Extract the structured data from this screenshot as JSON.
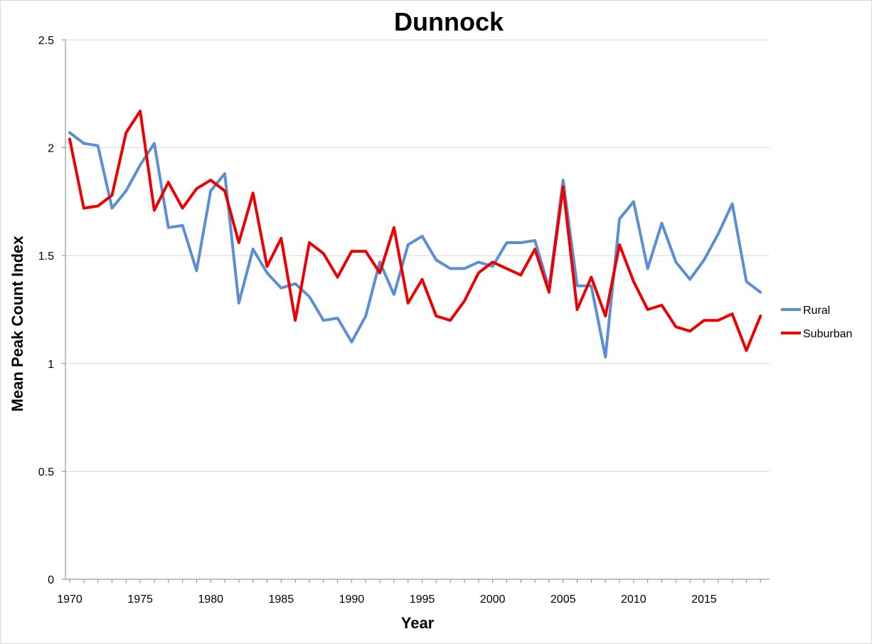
{
  "chart_data": {
    "type": "line",
    "title": "Dunnock",
    "xlabel": "Year",
    "ylabel": "Mean Peak Count Index",
    "ylim": [
      0,
      2.5
    ],
    "y_ticks": [
      "0",
      "0.5",
      "1",
      "1.5",
      "2",
      "2.5"
    ],
    "x_tick_labels": [
      "1970",
      "1975",
      "1980",
      "1985",
      "1990",
      "1995",
      "2000",
      "2005",
      "2010",
      "2015"
    ],
    "grid": "horizontal",
    "legend_position": "right",
    "x": [
      1970,
      1971,
      1972,
      1973,
      1974,
      1975,
      1976,
      1977,
      1978,
      1979,
      1980,
      1981,
      1982,
      1983,
      1984,
      1985,
      1986,
      1987,
      1988,
      1989,
      1990,
      1991,
      1992,
      1993,
      1994,
      1995,
      1996,
      1997,
      1998,
      1999,
      2000,
      2001,
      2002,
      2003,
      2004,
      2005,
      2006,
      2007,
      2008,
      2009,
      2010,
      2011,
      2012,
      2013,
      2014,
      2015,
      2016,
      2017,
      2018,
      2019
    ],
    "series": [
      {
        "name": "Rural",
        "color": "#5b8fd4",
        "values": [
          2.07,
          2.02,
          2.01,
          1.72,
          1.8,
          1.92,
          2.02,
          1.63,
          1.64,
          1.43,
          1.8,
          1.88,
          1.28,
          1.53,
          1.42,
          1.35,
          1.37,
          1.31,
          1.2,
          1.21,
          1.1,
          1.22,
          1.47,
          1.32,
          1.55,
          1.59,
          1.48,
          1.44,
          1.44,
          1.47,
          1.45,
          1.56,
          1.56,
          1.57,
          1.35,
          1.85,
          1.36,
          1.36,
          1.03,
          1.67,
          1.75,
          1.44,
          1.65,
          1.47,
          1.39,
          1.48,
          1.6,
          1.74,
          1.38,
          1.33
        ]
      },
      {
        "name": "Suburban",
        "color": "#ee0000",
        "values": [
          2.04,
          1.72,
          1.73,
          1.78,
          2.07,
          2.17,
          1.71,
          1.84,
          1.72,
          1.81,
          1.85,
          1.8,
          1.56,
          1.79,
          1.45,
          1.58,
          1.2,
          1.56,
          1.51,
          1.4,
          1.52,
          1.52,
          1.42,
          1.63,
          1.28,
          1.39,
          1.22,
          1.2,
          1.29,
          1.42,
          1.47,
          1.44,
          1.41,
          1.53,
          1.33,
          1.82,
          1.25,
          1.4,
          1.22,
          1.55,
          1.38,
          1.25,
          1.27,
          1.17,
          1.15,
          1.2,
          1.2,
          1.23,
          1.06,
          1.22
        ]
      }
    ]
  }
}
